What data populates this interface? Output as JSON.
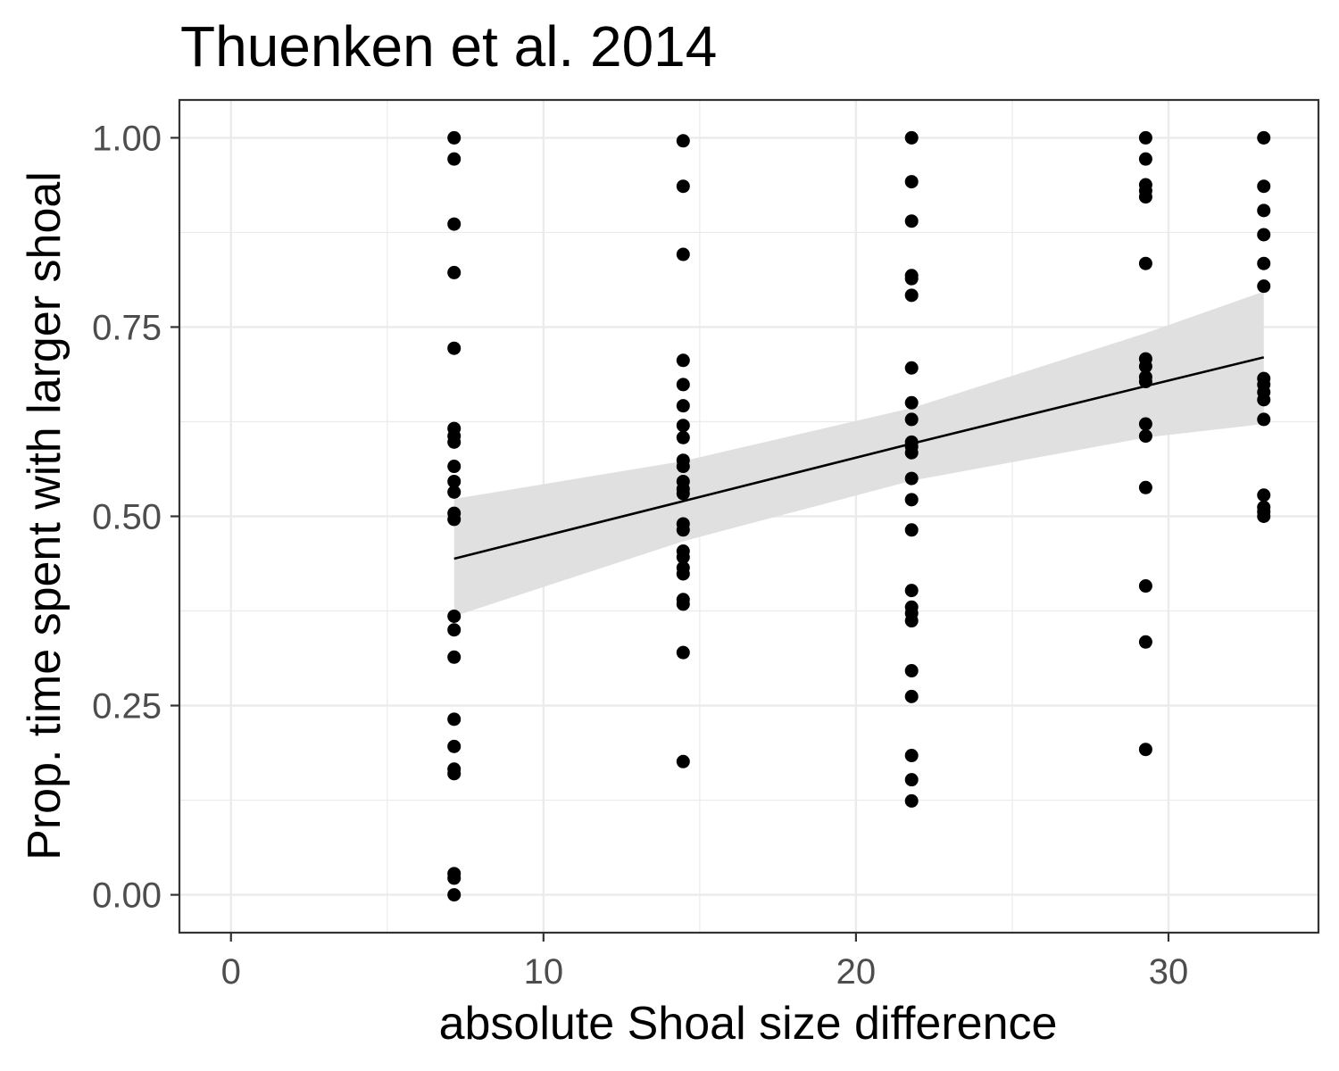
{
  "chart_data": {
    "type": "scatter",
    "title": "Thuenken et al. 2014",
    "xlabel": "absolute Shoal size difference",
    "ylabel": "Prop. time spent with larger shoal",
    "xlim": [
      -1.65,
      34.8
    ],
    "ylim": [
      -0.05,
      1.05
    ],
    "x_ticks": [
      0,
      10,
      20,
      30
    ],
    "x_tick_labels": [
      "0",
      "10",
      "20",
      "30"
    ],
    "y_ticks": [
      0,
      0.25,
      0.5,
      0.75,
      1
    ],
    "y_tick_labels": [
      "0.00",
      "0.25",
      "0.50",
      "0.75",
      "1.00"
    ],
    "grid": true,
    "legend": "none",
    "colors": {
      "points": "#000000",
      "ribbon": "#e0e0e0",
      "line": "#000000",
      "grid": "#ebebeb",
      "border": "#333333"
    },
    "points": [
      {
        "x": 7.14,
        "y": [
          1.0,
          0.972,
          0.886,
          0.822,
          0.722,
          0.616,
          0.606,
          0.598,
          0.566,
          0.546,
          0.532,
          0.504,
          0.496,
          0.368,
          0.35,
          0.314,
          0.232,
          0.196,
          0.166,
          0.16,
          0.028,
          0.022,
          0.0
        ]
      },
      {
        "x": 14.47,
        "y": [
          0.996,
          0.936,
          0.846,
          0.706,
          0.674,
          0.646,
          0.62,
          0.604,
          0.574,
          0.566,
          0.546,
          0.536,
          0.53,
          0.49,
          0.482,
          0.454,
          0.446,
          0.432,
          0.424,
          0.39,
          0.384,
          0.32,
          0.176
        ]
      },
      {
        "x": 21.78,
        "y": [
          1.0,
          0.942,
          0.89,
          0.818,
          0.814,
          0.792,
          0.696,
          0.65,
          0.628,
          0.598,
          0.592,
          0.584,
          0.55,
          0.522,
          0.482,
          0.402,
          0.38,
          0.372,
          0.362,
          0.296,
          0.262,
          0.184,
          0.152,
          0.124
        ]
      },
      {
        "x": 29.27,
        "y": [
          1.0,
          0.972,
          0.938,
          0.93,
          0.922,
          0.834,
          0.708,
          0.698,
          0.684,
          0.678,
          0.622,
          0.606,
          0.538,
          0.408,
          0.334,
          0.192
        ]
      },
      {
        "x": 33.05,
        "y": [
          1.0,
          0.936,
          0.904,
          0.872,
          0.834,
          0.804,
          0.682,
          0.674,
          0.664,
          0.654,
          0.628,
          0.528,
          0.512,
          0.506,
          0.5
        ]
      }
    ],
    "trend": {
      "x": [
        7.14,
        14.47,
        21.78,
        29.27,
        33.05
      ],
      "fit": [
        0.444,
        0.52,
        0.596,
        0.672,
        0.71
      ],
      "lower": [
        0.368,
        0.467,
        0.547,
        0.604,
        0.622
      ],
      "upper": [
        0.523,
        0.573,
        0.643,
        0.742,
        0.797
      ]
    }
  }
}
